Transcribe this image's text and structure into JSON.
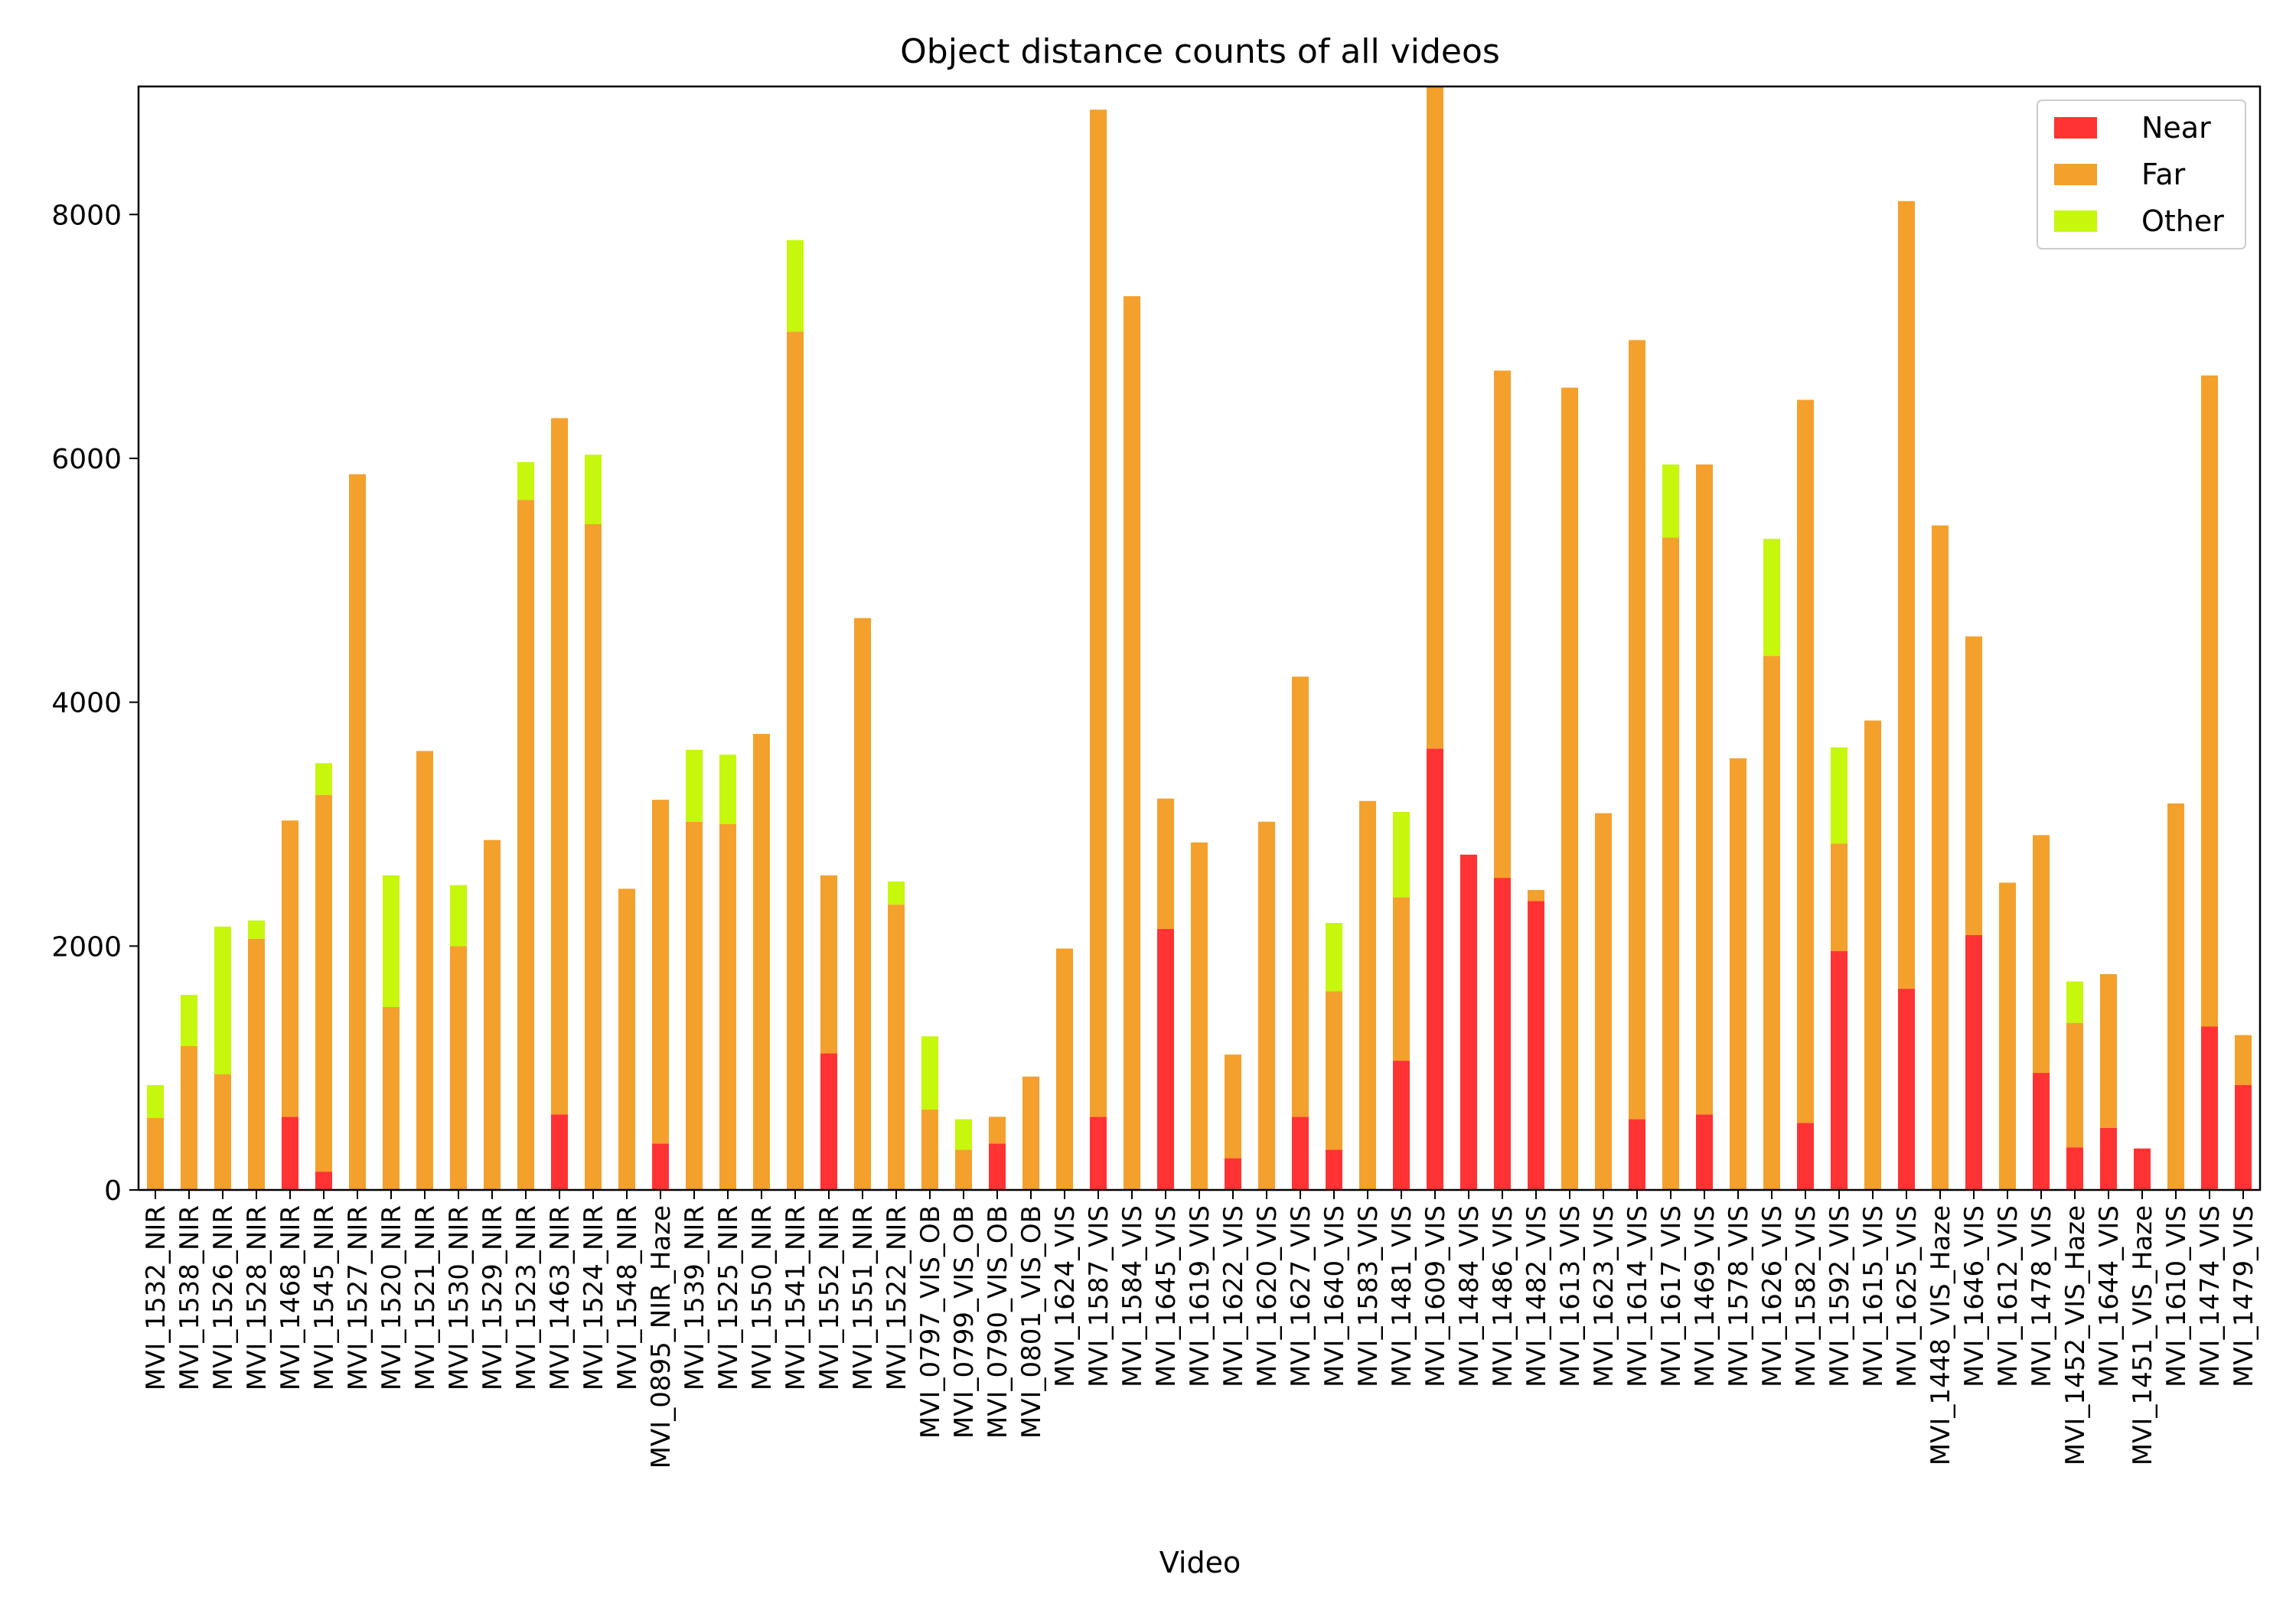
{
  "chart_data": {
    "type": "bar",
    "stacked": true,
    "title": "Object distance counts of all videos",
    "xlabel": "Video",
    "ylabel": "",
    "ylim": [
      0,
      9050
    ],
    "yticks": [
      0,
      2000,
      4000,
      6000,
      8000
    ],
    "grid": false,
    "legend_position": "top-right",
    "categories": [
      "MVI_1532_NIR",
      "MVI_1538_NIR",
      "MVI_1526_NIR",
      "MVI_1528_NIR",
      "MVI_1468_NIR",
      "MVI_1545_NIR",
      "MVI_1527_NIR",
      "MVI_1520_NIR",
      "MVI_1521_NIR",
      "MVI_1530_NIR",
      "MVI_1529_NIR",
      "MVI_1523_NIR",
      "MVI_1463_NIR",
      "MVI_1524_NIR",
      "MVI_1548_NIR",
      "MVI_0895_NIR_Haze",
      "MVI_1539_NIR",
      "MVI_1525_NIR",
      "MVI_1550_NIR",
      "MVI_1541_NIR",
      "MVI_1552_NIR",
      "MVI_1551_NIR",
      "MVI_1522_NIR",
      "MVI_0797_VIS_OB",
      "MVI_0799_VIS_OB",
      "MVI_0790_VIS_OB",
      "MVI_0801_VIS_OB",
      "MVI_1624_VIS",
      "MVI_1587_VIS",
      "MVI_1584_VIS",
      "MVI_1645_VIS",
      "MVI_1619_VIS",
      "MVI_1622_VIS",
      "MVI_1620_VIS",
      "MVI_1627_VIS",
      "MVI_1640_VIS",
      "MVI_1583_VIS",
      "MVI_1481_VIS",
      "MVI_1609_VIS",
      "MVI_1484_VIS",
      "MVI_1486_VIS",
      "MVI_1482_VIS",
      "MVI_1613_VIS",
      "MVI_1623_VIS",
      "MVI_1614_VIS",
      "MVI_1617_VIS",
      "MVI_1469_VIS",
      "MVI_1578_VIS",
      "MVI_1626_VIS",
      "MVI_1582_VIS",
      "MVI_1592_VIS",
      "MVI_1615_VIS",
      "MVI_1625_VIS",
      "MVI_1448_VIS_Haze",
      "MVI_1646_VIS",
      "MVI_1612_VIS",
      "MVI_1478_VIS",
      "MVI_1452_VIS_Haze",
      "MVI_1644_VIS",
      "MVI_1451_VIS_Haze",
      "MVI_1610_VIS",
      "MVI_1474_VIS",
      "MVI_1479_VIS"
    ],
    "series": [
      {
        "name": "Near",
        "color": "#ff3333",
        "values": [
          0,
          0,
          0,
          0,
          600,
          150,
          0,
          0,
          0,
          0,
          0,
          0,
          620,
          0,
          0,
          380,
          0,
          0,
          0,
          0,
          1120,
          0,
          0,
          0,
          0,
          380,
          0,
          0,
          600,
          0,
          2140,
          0,
          260,
          0,
          600,
          330,
          0,
          1060,
          3620,
          2750,
          2560,
          2370,
          0,
          0,
          580,
          0,
          620,
          0,
          0,
          550,
          1960,
          0,
          1650,
          0,
          2090,
          0,
          960,
          350,
          510,
          340,
          0,
          1340,
          860
        ]
      },
      {
        "name": "Far",
        "color": "#f4a02c",
        "values": [
          590,
          1180,
          950,
          2060,
          2430,
          3090,
          5870,
          1500,
          3600,
          2000,
          2870,
          5660,
          5710,
          5460,
          2470,
          2820,
          3020,
          3000,
          3740,
          7040,
          1460,
          4690,
          2340,
          660,
          330,
          220,
          930,
          1980,
          8260,
          7330,
          1070,
          2850,
          850,
          3020,
          3610,
          1300,
          3190,
          1340,
          5430,
          0,
          4160,
          90,
          6580,
          3090,
          6390,
          5350,
          5330,
          3540,
          4380,
          5930,
          880,
          3850,
          6460,
          5450,
          2450,
          2520,
          1950,
          1020,
          1260,
          0,
          3170,
          5340,
          410
        ]
      },
      {
        "name": "Other",
        "color": "#c6f70c",
        "values": [
          270,
          420,
          1210,
          150,
          0,
          260,
          0,
          1080,
          0,
          500,
          0,
          310,
          0,
          570,
          0,
          0,
          590,
          570,
          0,
          750,
          0,
          0,
          190,
          600,
          250,
          0,
          0,
          0,
          0,
          0,
          0,
          0,
          0,
          0,
          0,
          560,
          0,
          700,
          0,
          0,
          0,
          0,
          0,
          0,
          0,
          600,
          0,
          0,
          960,
          0,
          790,
          0,
          0,
          0,
          0,
          0,
          0,
          340,
          0,
          0,
          0,
          0,
          0
        ]
      }
    ]
  }
}
